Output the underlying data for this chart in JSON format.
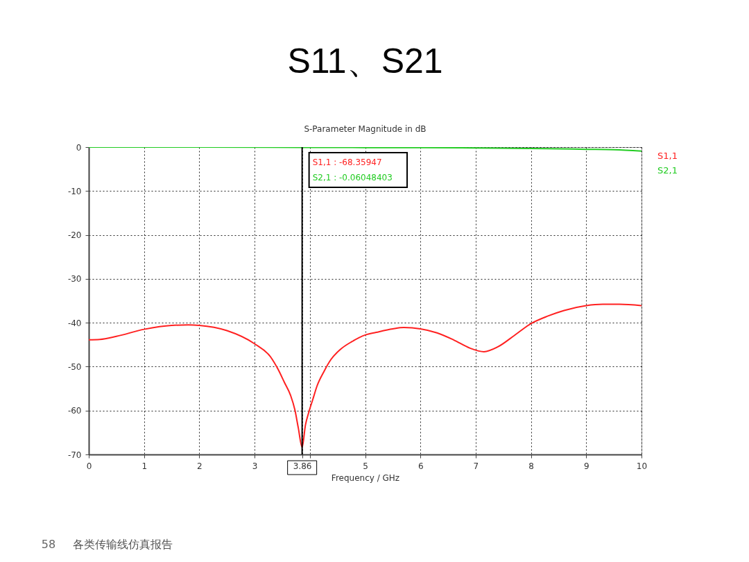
{
  "chart_data": {
    "type": "line",
    "title": "S11、S21",
    "subtitle": "S-Parameter Magnitude in dB",
    "xlabel": "Frequency / GHz",
    "xlim": [
      0,
      10
    ],
    "ylim": [
      -70,
      0
    ],
    "xticks": [
      0,
      1,
      2,
      3,
      3.86,
      {
        "value": 4,
        "label": null
      },
      5,
      6,
      7,
      8,
      9,
      10
    ],
    "yticks": [
      0,
      -10,
      -20,
      -30,
      -40,
      -50,
      -60,
      -70
    ],
    "grid": true,
    "legend": "top right",
    "marker": "none",
    "line_style": "solid",
    "series": [
      {
        "name": "S1,1",
        "color": "#ff2020",
        "x": [
          0,
          0.2,
          0.5,
          1,
          1.5,
          1.8,
          2,
          2.5,
          3,
          3.29,
          3.42,
          3.54,
          3.65,
          3.73,
          3.79,
          3.86,
          3.92,
          3.98,
          4.05,
          4.13,
          4.26,
          4.38,
          4.55,
          4.76,
          5,
          5.2,
          5.5,
          5.7,
          6,
          6.3,
          6.6,
          6.9,
          7.15,
          7.4,
          7.7,
          8,
          8.3,
          8.6,
          9,
          9.3,
          9.6,
          10
        ],
        "values": [
          -43.9,
          -43.8,
          -43.1,
          -41.5,
          -40.6,
          -40.5,
          -40.6,
          -41.8,
          -44.8,
          -47.8,
          -50.5,
          -53.6,
          -56.5,
          -59.9,
          -63.9,
          -68.35947,
          -63.3,
          -60.4,
          -57.6,
          -54.4,
          -51,
          -48.4,
          -46.1,
          -44.3,
          -42.8,
          -42.2,
          -41.4,
          -41.1,
          -41.4,
          -42.3,
          -43.9,
          -45.8,
          -46.6,
          -45.5,
          -42.9,
          -40.2,
          -38.5,
          -37.2,
          -36.1,
          -35.8,
          -35.8,
          -36.1
        ]
      },
      {
        "name": "S2,1",
        "color": "#22cc22",
        "x": [
          0,
          2,
          3.86,
          5,
          6,
          7,
          8,
          8.5,
          9,
          9.5,
          10
        ],
        "values": [
          0,
          0,
          -0.06048403,
          -0.1,
          -0.1,
          -0.2,
          -0.3,
          -0.4,
          -0.5,
          -0.6,
          -0.9
        ]
      }
    ],
    "ref_lines": [
      {
        "axis": "x",
        "value": 3.86,
        "color": "#000000",
        "line_style": "solid"
      }
    ],
    "annotations": [
      "S1,1 : -68.35947",
      "S2,1 : -0.06048403",
      "58",
      "各类传输线仿真报告"
    ]
  }
}
